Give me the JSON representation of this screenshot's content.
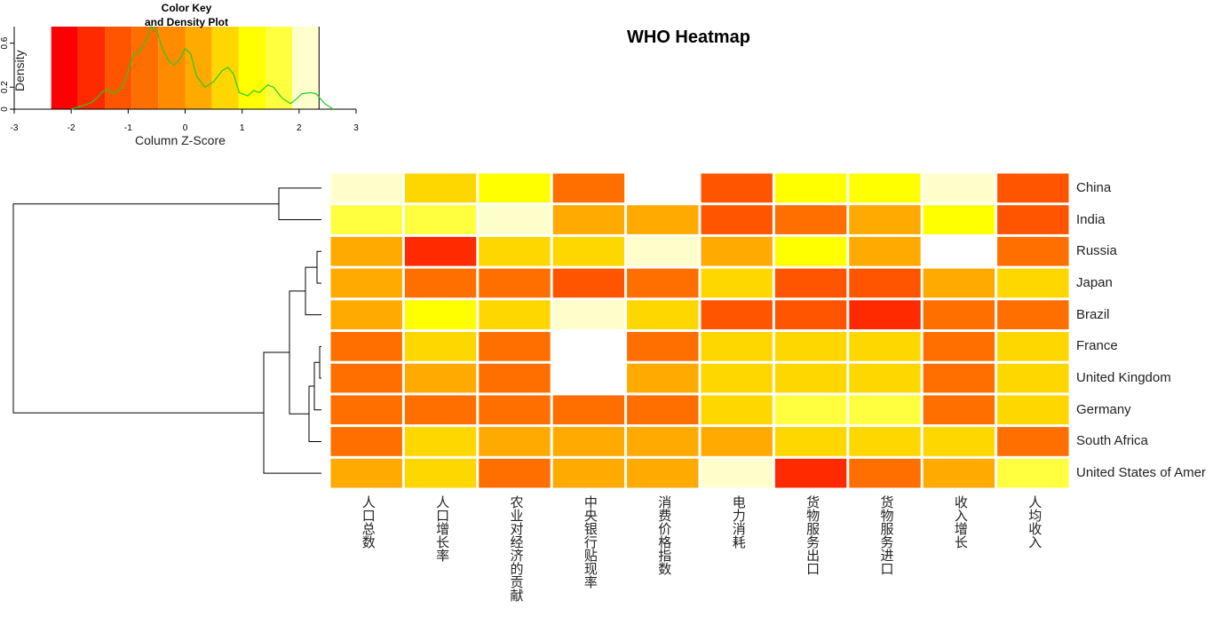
{
  "chart_data": {
    "type": "heatmap",
    "title": "WHO Heatmap",
    "rows": [
      "China",
      "India",
      "Russia",
      "Japan",
      "Brazil",
      "France",
      "United Kingdom",
      "Germany",
      "South Africa",
      "United States of Amer"
    ],
    "columns": [
      "人口总数",
      "人口增长率",
      "农业对经济的贡献",
      "中央银行贴现率",
      "消费价格指数",
      "电力消耗",
      "货物服务出口",
      "货物服务进口",
      "收入增长",
      "人均收入"
    ],
    "values": [
      [
        2.2,
        0.6,
        1.4,
        -0.6,
        null,
        -1.0,
        1.3,
        1.4,
        2.1,
        -1.1
      ],
      [
        1.6,
        1.5,
        2.0,
        0.2,
        0.1,
        -1.0,
        -0.6,
        0.1,
        1.3,
        -1.0
      ],
      [
        0.2,
        -1.6,
        0.5,
        0.9,
        2.2,
        0.2,
        1.2,
        0.1,
        null,
        -0.6
      ],
      [
        0.2,
        -0.5,
        -0.5,
        -1.0,
        -0.5,
        0.9,
        -1.1,
        -1.1,
        0.2,
        0.9
      ],
      [
        0.2,
        1.3,
        0.5,
        2.2,
        0.9,
        -1.0,
        -1.0,
        -1.6,
        -0.5,
        -0.5
      ],
      [
        -0.5,
        0.5,
        -0.5,
        null,
        -0.5,
        0.9,
        0.5,
        0.5,
        -0.5,
        0.9
      ],
      [
        -0.5,
        0.2,
        -0.5,
        null,
        0.1,
        0.5,
        0.5,
        0.9,
        -0.5,
        0.9
      ],
      [
        -0.5,
        -0.5,
        -0.5,
        -0.5,
        -0.5,
        0.5,
        1.6,
        1.7,
        -0.5,
        0.9
      ],
      [
        -0.6,
        0.5,
        0.2,
        0.2,
        0.2,
        0.2,
        0.5,
        0.9,
        0.5,
        -0.6
      ],
      [
        0.2,
        0.9,
        -0.5,
        0.2,
        0.2,
        2.2,
        -1.6,
        -0.6,
        0.2,
        1.6
      ]
    ],
    "row_dendrogram": {
      "order": [
        "China",
        "India",
        "Russia",
        "Japan",
        "Brazil",
        "France",
        "United Kingdom",
        "Germany",
        "South Africa",
        "United States of Amer"
      ]
    },
    "color_key": {
      "title_line1": "Color Key",
      "title_line2": "and Density Plot",
      "xlabel": "Column Z-Score",
      "ylabel": "Density",
      "xlim": [
        -3,
        3
      ],
      "x_ticks": [
        "-3",
        "-2",
        "-1",
        "0",
        "1",
        "2",
        "3"
      ],
      "y_ticks": [
        "0",
        "0.2",
        "0.6"
      ],
      "y_tick_values": [
        0,
        0.2,
        0.6
      ],
      "ylim": [
        0,
        0.75
      ],
      "bins": [
        -2.35,
        -1.88,
        -1.41,
        -0.94,
        -0.47,
        0.0,
        0.47,
        0.94,
        1.41,
        1.88,
        2.35
      ],
      "colors": [
        "#FF0000",
        "#FF2A00",
        "#FF5500",
        "#FF6F00",
        "#FF8C00",
        "#FFAA00",
        "#FFD700",
        "#FFFF00",
        "#FFFF40",
        "#FFFFCC"
      ],
      "density": [
        [
          -2.0,
          0.0
        ],
        [
          -1.8,
          0.03
        ],
        [
          -1.65,
          0.06
        ],
        [
          -1.55,
          0.1
        ],
        [
          -1.45,
          0.16
        ],
        [
          -1.35,
          0.18
        ],
        [
          -1.25,
          0.14
        ],
        [
          -1.1,
          0.2
        ],
        [
          -1.0,
          0.35
        ],
        [
          -0.9,
          0.5
        ],
        [
          -0.8,
          0.52
        ],
        [
          -0.7,
          0.6
        ],
        [
          -0.6,
          0.75
        ],
        [
          -0.5,
          0.72
        ],
        [
          -0.4,
          0.55
        ],
        [
          -0.3,
          0.45
        ],
        [
          -0.2,
          0.4
        ],
        [
          -0.1,
          0.45
        ],
        [
          0.0,
          0.55
        ],
        [
          0.1,
          0.5
        ],
        [
          0.2,
          0.3
        ],
        [
          0.35,
          0.2
        ],
        [
          0.5,
          0.25
        ],
        [
          0.65,
          0.35
        ],
        [
          0.75,
          0.38
        ],
        [
          0.85,
          0.32
        ],
        [
          0.95,
          0.15
        ],
        [
          1.1,
          0.12
        ],
        [
          1.2,
          0.17
        ],
        [
          1.3,
          0.15
        ],
        [
          1.45,
          0.22
        ],
        [
          1.55,
          0.2
        ],
        [
          1.7,
          0.1
        ],
        [
          1.85,
          0.05
        ],
        [
          1.95,
          0.09
        ],
        [
          2.05,
          0.14
        ],
        [
          2.2,
          0.15
        ],
        [
          2.3,
          0.14
        ],
        [
          2.45,
          0.05
        ],
        [
          2.6,
          0.0
        ]
      ]
    }
  }
}
